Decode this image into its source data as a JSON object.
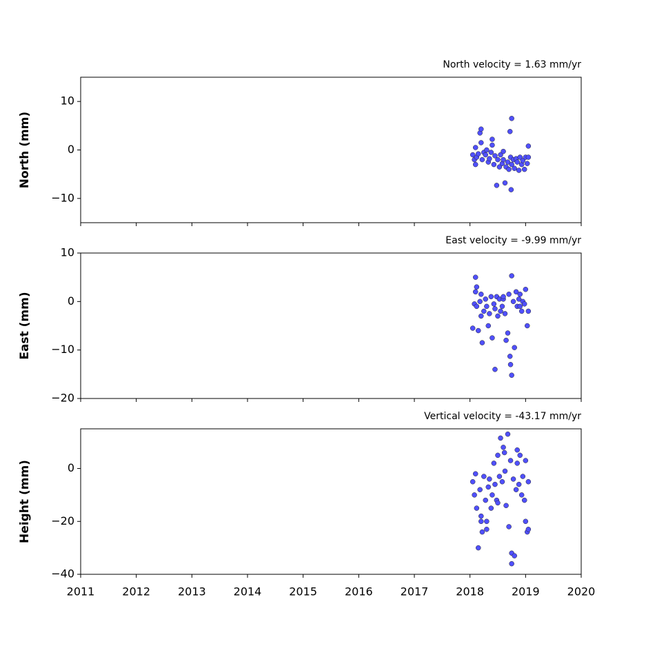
{
  "chart_data": [
    {
      "type": "scatter",
      "title": "North velocity = 1.63 mm/yr",
      "y_label": "North (mm)",
      "color": "#5050ff",
      "x": [
        2018.05,
        2018.08,
        2018.1,
        2018.12,
        2018.15,
        2018.18,
        2018.2,
        2018.22,
        2018.25,
        2018.28,
        2018.3,
        2018.33,
        2018.35,
        2018.38,
        2018.4,
        2018.43,
        2018.45,
        2018.48,
        2018.5,
        2018.53,
        2018.55,
        2018.58,
        2018.6,
        2018.63,
        2018.65,
        2018.68,
        2018.7,
        2018.73,
        2018.75,
        2018.78,
        2018.8,
        2018.83,
        2018.85,
        2018.88,
        2018.9,
        2018.93,
        2018.95,
        2018.98,
        2019.0,
        2019.03,
        2019.05,
        2018.2,
        2018.75,
        2018.72,
        2018.74,
        2018.1,
        2018.4,
        2018.6,
        2019.05
      ],
      "values": [
        -1,
        -2,
        0.5,
        -1.5,
        -0.8,
        3.5,
        1.5,
        -2,
        -0.5,
        -1,
        0,
        -2.5,
        -1.8,
        -0.5,
        2.2,
        -3,
        -1.2,
        -7.3,
        -2,
        -3.5,
        -1,
        -2.8,
        -0.3,
        -6.8,
        -3.5,
        -2.5,
        -4,
        -1.5,
        -3,
        -2,
        -3.8,
        -1.8,
        -2.5,
        -4.2,
        -1.5,
        -3,
        -2.2,
        -4,
        -1.5,
        -2.8,
        0.8,
        4.3,
        6.5,
        3.8,
        -8.2,
        -3,
        1,
        -2,
        -1.5
      ],
      "xlim": [
        2011,
        2020
      ],
      "xticks": [
        2011,
        2012,
        2013,
        2014,
        2015,
        2016,
        2017,
        2018,
        2019,
        2020
      ],
      "ylim": [
        -15,
        15
      ],
      "yticks": [
        {
          "value": -10,
          "label": "−10"
        },
        0,
        10
      ]
    },
    {
      "type": "scatter",
      "title": "East velocity = -9.99 mm/yr",
      "y_label": "East (mm)",
      "color": "#5050ff",
      "x": [
        2018.05,
        2018.08,
        2018.1,
        2018.12,
        2018.15,
        2018.18,
        2018.2,
        2018.22,
        2018.25,
        2018.28,
        2018.3,
        2018.33,
        2018.35,
        2018.38,
        2018.4,
        2018.43,
        2018.45,
        2018.48,
        2018.5,
        2018.53,
        2018.55,
        2018.58,
        2018.6,
        2018.63,
        2018.65,
        2018.68,
        2018.7,
        2018.73,
        2018.75,
        2018.78,
        2018.8,
        2018.83,
        2018.85,
        2018.88,
        2018.9,
        2018.93,
        2018.95,
        2018.98,
        2019.0,
        2019.03,
        2019.05,
        2018.1,
        2018.75,
        2018.45,
        2018.72,
        2018.12,
        2018.2,
        2018.6,
        2018.9
      ],
      "values": [
        -5.5,
        -0.5,
        2,
        -1,
        -6,
        0,
        1.5,
        -8.5,
        -2,
        0.5,
        -1,
        -5,
        -2.5,
        1,
        -7.5,
        -0.5,
        -1.5,
        1,
        -3,
        0.5,
        -2,
        -1,
        0.5,
        -2.5,
        -8,
        -6.5,
        1.5,
        -13,
        -15.2,
        0,
        -9.5,
        2,
        -1,
        0.5,
        1.5,
        -2,
        0,
        -0.5,
        2.5,
        -5,
        -2,
        5,
        5.3,
        -14,
        -11.3,
        3,
        -3,
        1,
        -1
      ],
      "xlim": [
        2011,
        2020
      ],
      "xticks": [
        2011,
        2012,
        2013,
        2014,
        2015,
        2016,
        2017,
        2018,
        2019,
        2020
      ],
      "ylim": [
        -20,
        10
      ],
      "yticks": [
        {
          "value": -20,
          "label": "−20"
        },
        {
          "value": -10,
          "label": "−10"
        },
        0,
        10
      ]
    },
    {
      "type": "scatter",
      "title": "Vertical velocity = -43.17 mm/yr",
      "y_label": "Height (mm)",
      "color": "#5050ff",
      "x": [
        2018.05,
        2018.08,
        2018.1,
        2018.12,
        2018.15,
        2018.18,
        2018.2,
        2018.22,
        2018.25,
        2018.28,
        2018.3,
        2018.33,
        2018.35,
        2018.38,
        2018.4,
        2018.43,
        2018.45,
        2018.48,
        2018.5,
        2018.53,
        2018.55,
        2018.58,
        2018.6,
        2018.63,
        2018.65,
        2018.68,
        2018.7,
        2018.73,
        2018.75,
        2018.78,
        2018.8,
        2018.83,
        2018.85,
        2018.88,
        2018.9,
        2018.93,
        2018.95,
        2018.98,
        2019.0,
        2019.03,
        2019.05,
        2018.75,
        2018.62,
        2018.5,
        2018.3,
        2018.85,
        2019.0,
        2018.2,
        2019.05
      ],
      "values": [
        -5,
        -10,
        -2,
        -15,
        -30,
        -8,
        -18,
        -24,
        -3,
        -12,
        -20,
        -7,
        -4,
        -15,
        -10,
        2,
        -6,
        -12,
        5,
        -3,
        11.5,
        -5,
        8,
        -1,
        -14,
        13,
        -22,
        3,
        -32,
        -4,
        -33,
        -8,
        2,
        -6,
        5,
        -10,
        -3,
        -12,
        -20,
        -24,
        -5,
        -36,
        6,
        -13,
        -23,
        7,
        3,
        -20,
        -23
      ],
      "xlim": [
        2011,
        2020
      ],
      "xticks": [
        2011,
        2012,
        2013,
        2014,
        2015,
        2016,
        2017,
        2018,
        2019,
        2020
      ],
      "ylim": [
        -40,
        15
      ],
      "yticks": [
        {
          "value": -40,
          "label": "−40"
        },
        {
          "value": -20,
          "label": "−20"
        },
        0
      ]
    }
  ]
}
